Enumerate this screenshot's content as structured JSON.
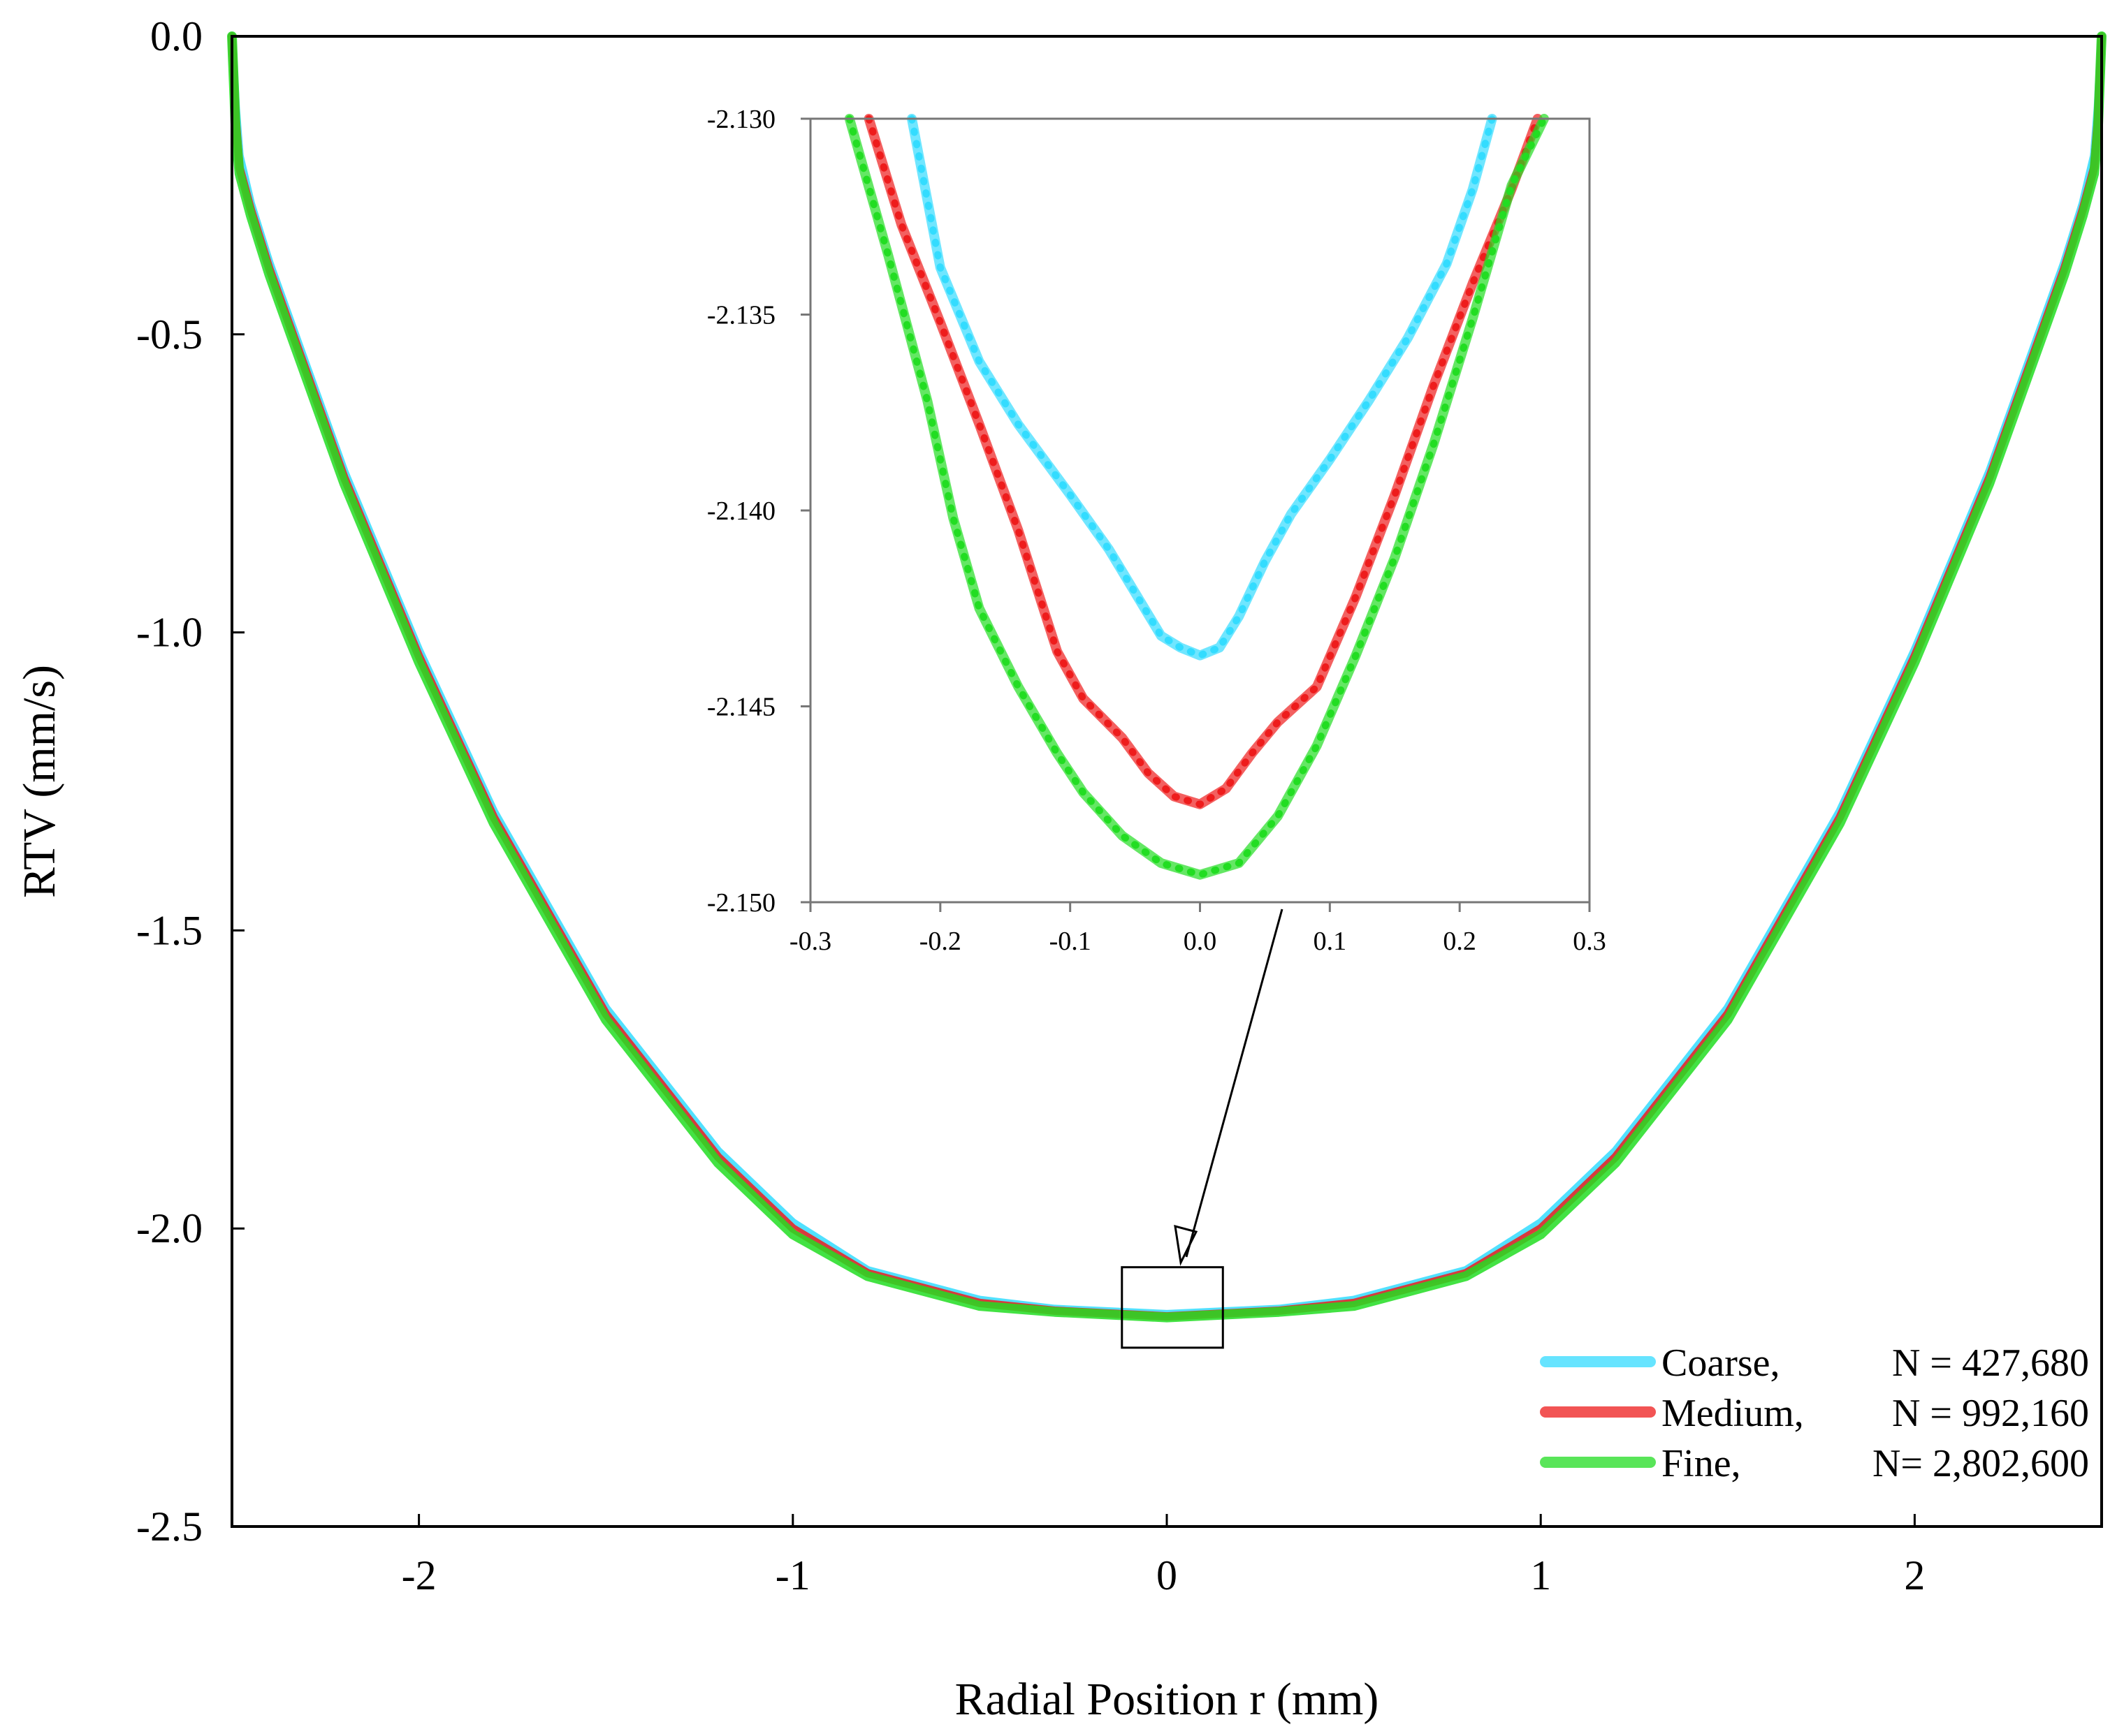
{
  "chart_data": [
    {
      "id": "main",
      "type": "line",
      "title": "",
      "xlabel": "Radial Position r (mm)",
      "ylabel": "RTV  (mm/s)",
      "xlim": [
        -2.5,
        2.5
      ],
      "ylim": [
        -2.5,
        0.0
      ],
      "xticks": [
        -2,
        -1,
        0,
        1,
        2
      ],
      "xtick_labels": [
        "-2",
        "-1",
        "0",
        "1",
        "2"
      ],
      "yticks": [
        0.0,
        -0.5,
        -1.0,
        -1.5,
        -2.0,
        -2.5
      ],
      "ytick_labels": [
        "0.0",
        "-0.5",
        "-1.0",
        "-1.5",
        "-2.0",
        "-2.5"
      ],
      "grid": false,
      "legend_position": "bottom-right",
      "series": [
        {
          "name": "Coarse",
          "legend_label": "Coarse,",
          "legend_value": "N = 427,680",
          "color": "#33dcff",
          "x": [
            -2.5,
            -2.49,
            -2.48,
            -2.45,
            -2.4,
            -2.2,
            -2.0,
            -1.8,
            -1.5,
            -1.2,
            -1.0,
            -0.8,
            -0.5,
            -0.3,
            0.0,
            0.3,
            0.5,
            0.8,
            1.0,
            1.2,
            1.5,
            1.8,
            2.0,
            2.2,
            2.4,
            2.45,
            2.48,
            2.49,
            2.5
          ],
          "y": [
            0.0,
            -0.12,
            -0.2,
            -0.28,
            -0.38,
            -0.73,
            -1.03,
            -1.3,
            -1.63,
            -1.87,
            -1.99,
            -2.07,
            -2.12,
            -2.135,
            -2.1437,
            -2.135,
            -2.12,
            -2.07,
            -1.99,
            -1.87,
            -1.63,
            -1.3,
            -1.03,
            -0.73,
            -0.38,
            -0.28,
            -0.2,
            -0.12,
            0.0
          ]
        },
        {
          "name": "Medium",
          "legend_label": "Medium,",
          "legend_value": "N = 992,160",
          "color": "#ee1c1c",
          "x": [
            -2.5,
            -2.49,
            -2.48,
            -2.45,
            -2.4,
            -2.2,
            -2.0,
            -1.8,
            -1.5,
            -1.2,
            -1.0,
            -0.8,
            -0.5,
            -0.3,
            0.0,
            0.3,
            0.5,
            0.8,
            1.0,
            1.2,
            1.5,
            1.8,
            2.0,
            2.2,
            2.4,
            2.45,
            2.48,
            2.49,
            2.5
          ],
          "y": [
            0.0,
            -0.14,
            -0.22,
            -0.29,
            -0.39,
            -0.74,
            -1.04,
            -1.31,
            -1.64,
            -1.88,
            -2.0,
            -2.075,
            -2.125,
            -2.138,
            -2.1475,
            -2.138,
            -2.125,
            -2.075,
            -2.0,
            -1.88,
            -1.64,
            -1.31,
            -1.04,
            -0.74,
            -0.39,
            -0.29,
            -0.22,
            -0.14,
            0.0
          ]
        },
        {
          "name": "Fine",
          "legend_label": "Fine,",
          "legend_value": "N= 2,802,600",
          "color": "#22dd22",
          "x": [
            -2.5,
            -2.49,
            -2.48,
            -2.45,
            -2.4,
            -2.2,
            -2.0,
            -1.8,
            -1.5,
            -1.2,
            -1.0,
            -0.8,
            -0.5,
            -0.3,
            0.0,
            0.3,
            0.5,
            0.8,
            1.0,
            1.2,
            1.5,
            1.8,
            2.0,
            2.2,
            2.4,
            2.45,
            2.48,
            2.49,
            2.5
          ],
          "y": [
            0.0,
            -0.16,
            -0.23,
            -0.3,
            -0.4,
            -0.75,
            -1.05,
            -1.32,
            -1.65,
            -1.89,
            -2.01,
            -2.08,
            -2.13,
            -2.14,
            -2.1493,
            -2.14,
            -2.13,
            -2.08,
            -2.01,
            -1.89,
            -1.65,
            -1.32,
            -1.05,
            -0.75,
            -0.4,
            -0.3,
            -0.23,
            -0.16,
            0.0
          ]
        }
      ],
      "zoom_box": {
        "xrange": [
          -0.12,
          0.15
        ],
        "yrange": [
          -2.2,
          -2.065
        ]
      }
    },
    {
      "id": "inset",
      "type": "line",
      "title": "",
      "xlabel": "",
      "ylabel": "",
      "xlim": [
        -0.3,
        0.3
      ],
      "ylim": [
        -2.15,
        -2.13
      ],
      "xticks": [
        -0.3,
        -0.2,
        -0.1,
        0.0,
        0.1,
        0.2,
        0.3
      ],
      "xtick_labels": [
        "-0.3",
        "-0.2",
        "-0.1",
        "0.0",
        "0.1",
        "0.2",
        "0.3"
      ],
      "yticks": [
        -2.13,
        -2.135,
        -2.14,
        -2.145,
        -2.15
      ],
      "ytick_labels": [
        "-2.130",
        "-2.135",
        "-2.140",
        "-2.145",
        "-2.150"
      ],
      "grid": false,
      "series": [
        {
          "name": "Coarse",
          "color": "#33dcff",
          "x": [
            -0.222,
            -0.2,
            -0.17,
            -0.14,
            -0.12,
            -0.1,
            -0.07,
            -0.05,
            -0.03,
            -0.015,
            0.0,
            0.015,
            0.03,
            0.05,
            0.07,
            0.1,
            0.13,
            0.16,
            0.19,
            0.21,
            0.225
          ],
          "y": [
            -2.13,
            -2.1338,
            -2.1362,
            -2.1378,
            -2.1387,
            -2.1396,
            -2.141,
            -2.1421,
            -2.1432,
            -2.1435,
            -2.1437,
            -2.1435,
            -2.1427,
            -2.1413,
            -2.1401,
            -2.1387,
            -2.1372,
            -2.1356,
            -2.1337,
            -2.1318,
            -2.13
          ]
        },
        {
          "name": "Medium",
          "color": "#ee1c1c",
          "x": [
            -0.255,
            -0.23,
            -0.2,
            -0.17,
            -0.14,
            -0.11,
            -0.09,
            -0.06,
            -0.04,
            -0.02,
            0.0,
            0.02,
            0.04,
            0.06,
            0.09,
            0.12,
            0.15,
            0.18,
            0.21,
            0.24,
            0.26
          ],
          "y": [
            -2.13,
            -2.1327,
            -2.1352,
            -2.1378,
            -2.1405,
            -2.1436,
            -2.1448,
            -2.1458,
            -2.1467,
            -2.1473,
            -2.1475,
            -2.1471,
            -2.1462,
            -2.1454,
            -2.1445,
            -2.1422,
            -2.1396,
            -2.1368,
            -2.1342,
            -2.1318,
            -2.13
          ]
        },
        {
          "name": "Fine",
          "color": "#22dd22",
          "x": [
            -0.27,
            -0.24,
            -0.21,
            -0.19,
            -0.17,
            -0.14,
            -0.11,
            -0.09,
            -0.06,
            -0.03,
            0.0,
            0.03,
            0.06,
            0.09,
            0.12,
            0.15,
            0.18,
            0.21,
            0.24,
            0.265
          ],
          "y": [
            -2.13,
            -2.1335,
            -2.1372,
            -2.1402,
            -2.1425,
            -2.1445,
            -2.1462,
            -2.1472,
            -2.1483,
            -2.149,
            -2.1493,
            -2.149,
            -2.1478,
            -2.146,
            -2.1437,
            -2.1412,
            -2.1383,
            -2.1351,
            -2.1317,
            -2.13
          ]
        }
      ]
    }
  ]
}
